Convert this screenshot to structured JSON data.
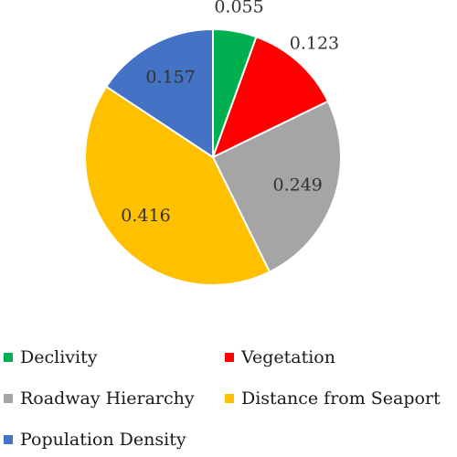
{
  "chart_data": {
    "type": "pie",
    "title": "",
    "slices": [
      {
        "label": "Declivity",
        "value": 0.055,
        "value_label": "0.055",
        "color": "#00B050"
      },
      {
        "label": "Vegetation",
        "value": 0.123,
        "value_label": "0.123",
        "color": "#FF0000"
      },
      {
        "label": "Roadway Hierarchy",
        "value": 0.249,
        "value_label": "0.249",
        "color": "#A5A5A5"
      },
      {
        "label": "Distance from Seaport",
        "value": 0.416,
        "value_label": "0.416",
        "color": "#FFC000"
      },
      {
        "label": "Population Density",
        "value": 0.157,
        "value_label": "0.157",
        "color": "#4472C4"
      }
    ],
    "start_angle_deg": 0,
    "direction": "clockwise",
    "legend_placement": "bottom",
    "slice_border_color": "#ffffff"
  }
}
